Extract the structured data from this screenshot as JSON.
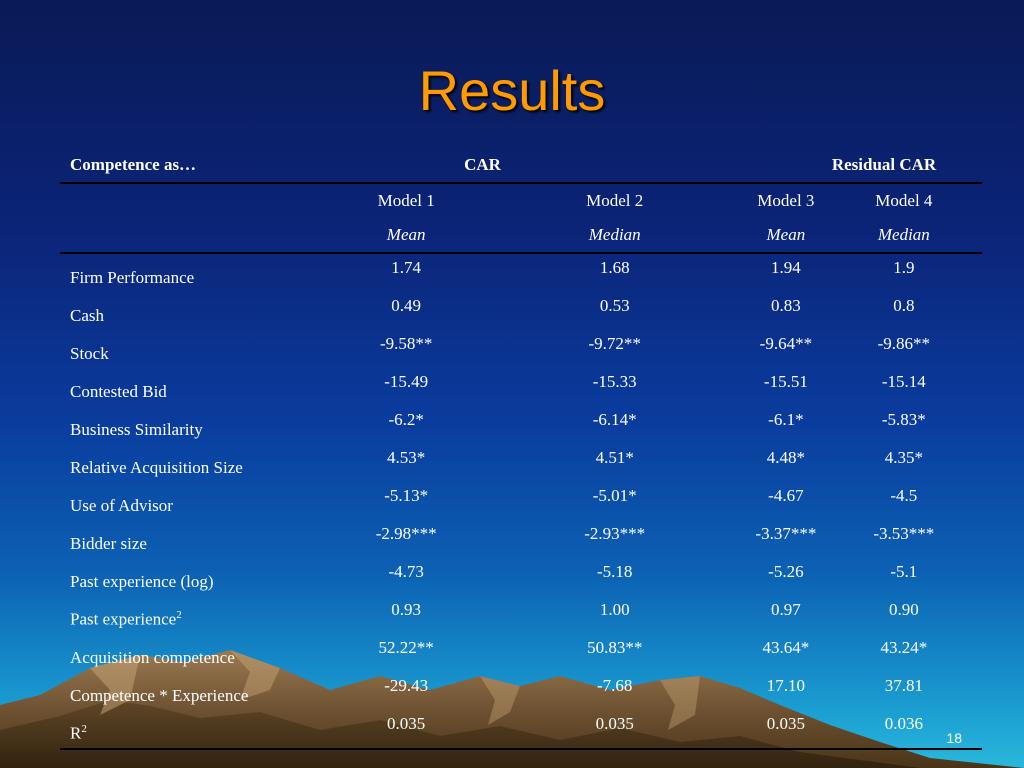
{
  "slide": {
    "title": "Results",
    "page_number": "18"
  },
  "table": {
    "group_headers": {
      "label": "Competence as…",
      "car": "CAR",
      "residual_car": "Residual CAR"
    },
    "models": [
      "Model 1",
      "Model 2",
      "Model 3",
      "Model 4"
    ],
    "stats": [
      "Mean",
      "Median",
      "Mean",
      "Median"
    ],
    "rows": [
      {
        "label": "Firm Performance",
        "values": [
          "1.74",
          "1.68",
          "1.94",
          "1.9"
        ]
      },
      {
        "label": "Cash",
        "values": [
          "0.49",
          "0.53",
          "0.83",
          "0.8"
        ]
      },
      {
        "label": "Stock",
        "values": [
          "-9.58**",
          "-9.72**",
          "-9.64**",
          "-9.86**"
        ]
      },
      {
        "label": "Contested Bid",
        "values": [
          "-15.49",
          "-15.33",
          "-15.51",
          "-15.14"
        ]
      },
      {
        "label": "Business Similarity",
        "values": [
          "-6.2*",
          "-6.14*",
          "-6.1*",
          "-5.83*"
        ]
      },
      {
        "label": "Relative Acquisition Size",
        "values": [
          "4.53*",
          "4.51*",
          "4.48*",
          "4.35*"
        ]
      },
      {
        "label": "Use of Advisor",
        "values": [
          "-5.13*",
          "-5.01*",
          "-4.67",
          "-4.5"
        ]
      },
      {
        "label": "Bidder size",
        "values": [
          "-2.98***",
          "-2.93***",
          "-3.37***",
          "-3.53***"
        ]
      },
      {
        "label": "Past experience (log)",
        "values": [
          "-4.73",
          "-5.18",
          "-5.26",
          "-5.1"
        ]
      },
      {
        "label": "Past experience",
        "sup": "2",
        "values": [
          "0.93",
          "1.00",
          "0.97",
          "0.90"
        ]
      },
      {
        "label": "Acquisition competence",
        "values": [
          "52.22**",
          "50.83**",
          "43.64*",
          "43.24*"
        ]
      },
      {
        "label": "Competence * Experience",
        "values": [
          "-29.43",
          "-7.68",
          "17.10",
          "37.81"
        ]
      },
      {
        "label": "R",
        "sup": "2",
        "values": [
          "0.035",
          "0.035",
          "0.035",
          "0.036"
        ]
      }
    ]
  },
  "colors": {
    "title": "#ff9a00",
    "text": "#ffffff",
    "rule": "#000000"
  }
}
